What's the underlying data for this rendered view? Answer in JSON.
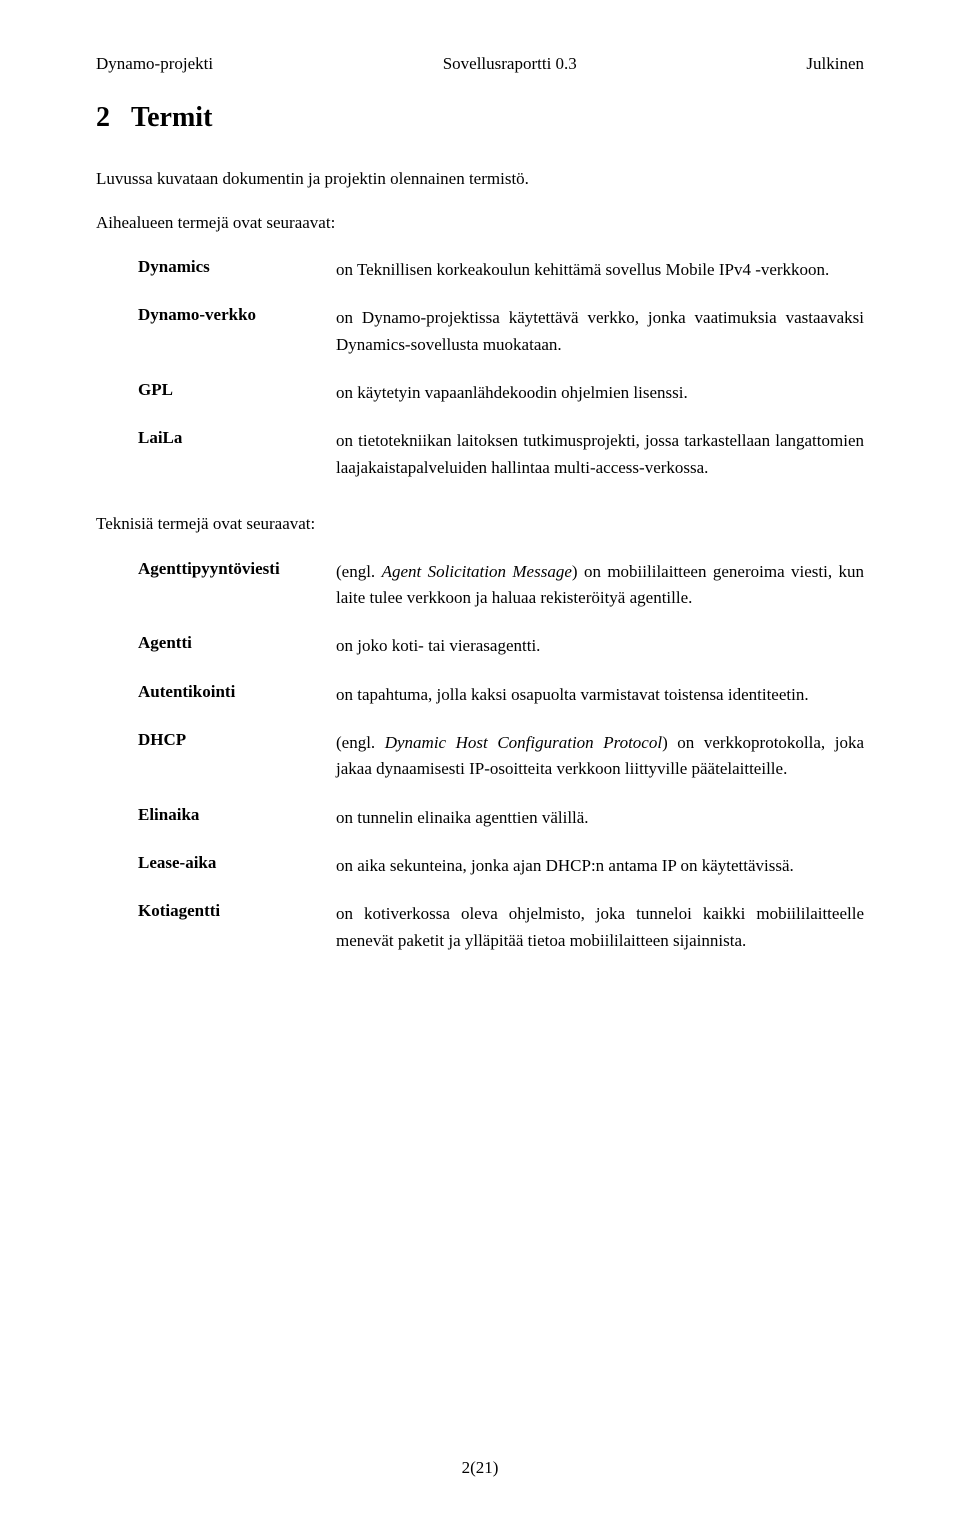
{
  "header": {
    "left": "Dynamo-projekti",
    "center": "Sovellusraportti 0.3",
    "right": "Julkinen"
  },
  "section": {
    "number": "2",
    "title": "Termit"
  },
  "intro": "Luvussa kuvataan dokumentin ja projektin olennainen termistö.",
  "topic_intro": "Aihealueen termejä ovat seuraavat:",
  "topic_terms": [
    {
      "term": "Dynamics",
      "desc": "on Teknillisen korkeakoulun kehittämä sovellus Mobile IPv4 -verkkoon."
    },
    {
      "term": "Dynamo-verkko",
      "desc": "on Dynamo-projektissa käytettävä verkko, jonka vaatimuksia vastaavaksi Dynamics-sovellusta muokataan."
    },
    {
      "term": "GPL",
      "desc": "on käytetyin vapaanlähdekoodin ohjelmien lisenssi."
    },
    {
      "term": "LaiLa",
      "desc": "on tietotekniikan laitoksen tutkimusprojekti, jossa tarkastellaan langattomien laajakaistapalveluiden hallintaa multi-access-verkossa."
    }
  ],
  "tech_intro": "Teknisiä termejä ovat seuraavat:",
  "tech_terms": [
    {
      "term": "Agenttipyyntöviesti",
      "prefix": "(engl. ",
      "italic": "Agent Solicitation Message",
      "suffix": ") on mobiililaitteen generoima viesti, kun laite tulee verkkoon ja haluaa rekisteröityä agentille."
    },
    {
      "term": "Agentti",
      "desc": "on joko koti- tai vierasagentti."
    },
    {
      "term": "Autentikointi",
      "desc": "on tapahtuma, jolla kaksi osapuolta varmistavat toistensa identiteetin."
    },
    {
      "term": "DHCP",
      "prefix": "(engl. ",
      "italic": "Dynamic Host Configuration Protocol",
      "suffix": ") on verkkoprotokolla, joka jakaa dynaamisesti IP-osoitteita verkkoon liittyville päätelaitteille."
    },
    {
      "term": "Elinaika",
      "desc": "on tunnelin elinaika agenttien välillä."
    },
    {
      "term": "Lease-aika",
      "desc": "on aika sekunteina, jonka ajan DHCP:n antama IP on käytettävissä."
    },
    {
      "term": "Kotiagentti",
      "desc": "on kotiverkossa oleva ohjelmisto, joka tunneloi kaikki mobiililaitteelle menevät paketit ja ylläpitää tietoa mobiililaitteen sijainnista."
    }
  ],
  "footer": {
    "page": "2(21)"
  }
}
